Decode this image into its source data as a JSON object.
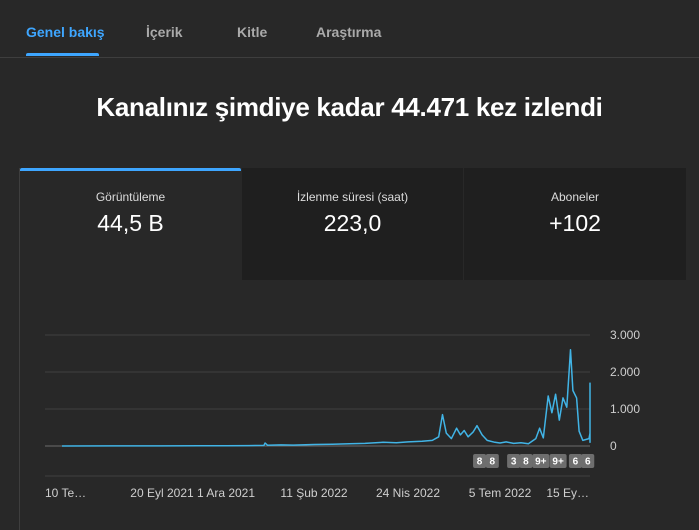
{
  "tabs": [
    {
      "label": "Genel bakış",
      "active": true
    },
    {
      "label": "İçerik",
      "active": false
    },
    {
      "label": "Kitle",
      "active": false
    },
    {
      "label": "Araştırma",
      "active": false
    }
  ],
  "headline": "Kanalınız şimdiye kadar 44.471 kez izlendi",
  "metrics": [
    {
      "label": "Görüntüleme",
      "value": "44,5 B"
    },
    {
      "label": "İzlenme süresi (saat)",
      "value": "223,0"
    },
    {
      "label": "Aboneler",
      "value": "+102"
    }
  ],
  "colors": {
    "accent": "#3ea6ff",
    "line": "#41b4e6",
    "background": "#282828"
  },
  "chart_data": {
    "type": "line",
    "ylim": [
      0,
      3000
    ],
    "y_ticks": [
      {
        "value": 3000,
        "label": "3.000"
      },
      {
        "value": 2000,
        "label": "2.000"
      },
      {
        "value": 1000,
        "label": "1.000"
      },
      {
        "value": 0,
        "label": "0"
      }
    ],
    "x_ticks": [
      "10 Te…",
      "20 Eyl 2021",
      "1 Ara 2021",
      "11 Şub 2022",
      "24 Nis 2022",
      "5 Tem 2022",
      "15 Ey…"
    ],
    "x_tick_dates": [
      "2021-07-10",
      "2021-09-20",
      "2021-12-01",
      "2022-02-11",
      "2022-04-24",
      "2022-07-05",
      "2022-09-15"
    ],
    "grid": true,
    "series": [
      {
        "points": [
          [
            "2021-07-10",
            0
          ],
          [
            "2021-08-15",
            2
          ],
          [
            "2021-09-20",
            3
          ],
          [
            "2021-11-01",
            5
          ],
          [
            "2021-12-01",
            5
          ],
          [
            "2021-12-20",
            10
          ],
          [
            "2022-01-01",
            15
          ],
          [
            "2022-01-02",
            80
          ],
          [
            "2022-01-04",
            20
          ],
          [
            "2022-01-15",
            30
          ],
          [
            "2022-01-25",
            25
          ],
          [
            "2022-02-11",
            40
          ],
          [
            "2022-02-25",
            50
          ],
          [
            "2022-03-10",
            60
          ],
          [
            "2022-03-22",
            70
          ],
          [
            "2022-04-05",
            100
          ],
          [
            "2022-04-15",
            90
          ],
          [
            "2022-04-24",
            110
          ],
          [
            "2022-05-05",
            130
          ],
          [
            "2022-05-13",
            150
          ],
          [
            "2022-05-18",
            250
          ],
          [
            "2022-05-21",
            850
          ],
          [
            "2022-05-24",
            350
          ],
          [
            "2022-05-28",
            200
          ],
          [
            "2022-06-01",
            480
          ],
          [
            "2022-06-04",
            300
          ],
          [
            "2022-06-07",
            420
          ],
          [
            "2022-06-10",
            250
          ],
          [
            "2022-06-14",
            380
          ],
          [
            "2022-06-17",
            550
          ],
          [
            "2022-06-21",
            300
          ],
          [
            "2022-06-25",
            150
          ],
          [
            "2022-07-01",
            100
          ],
          [
            "2022-07-05",
            80
          ],
          [
            "2022-07-10",
            110
          ],
          [
            "2022-07-16",
            70
          ],
          [
            "2022-07-22",
            90
          ],
          [
            "2022-07-28",
            60
          ],
          [
            "2022-08-03",
            200
          ],
          [
            "2022-08-06",
            480
          ],
          [
            "2022-08-09",
            220
          ],
          [
            "2022-08-13",
            1350
          ],
          [
            "2022-08-16",
            900
          ],
          [
            "2022-08-19",
            1400
          ],
          [
            "2022-08-22",
            700
          ],
          [
            "2022-08-25",
            1300
          ],
          [
            "2022-08-28",
            1050
          ],
          [
            "2022-08-31",
            2600
          ],
          [
            "2022-09-02",
            1500
          ],
          [
            "2022-09-05",
            1300
          ],
          [
            "2022-09-07",
            400
          ],
          [
            "2022-09-10",
            150
          ],
          [
            "2022-09-15",
            200
          ],
          [
            "2022-09-19",
            350
          ],
          [
            "2022-09-22",
            100
          ],
          [
            "2022-09-25",
            1700
          ],
          [
            "2022-09-27",
            400
          ],
          [
            "2022-09-29",
            150
          ],
          [
            "2022-10-01",
            1350
          ]
        ]
      }
    ],
    "badges": [
      {
        "date": "2022-06-19",
        "label": "8"
      },
      {
        "date": "2022-06-29",
        "label": "8"
      },
      {
        "date": "2022-07-16",
        "label": "3"
      },
      {
        "date": "2022-07-26",
        "label": "8"
      },
      {
        "date": "2022-08-07",
        "label": "9+"
      },
      {
        "date": "2022-08-21",
        "label": "9+"
      },
      {
        "date": "2022-09-04",
        "label": "6"
      },
      {
        "date": "2022-09-14",
        "label": "6"
      }
    ]
  }
}
